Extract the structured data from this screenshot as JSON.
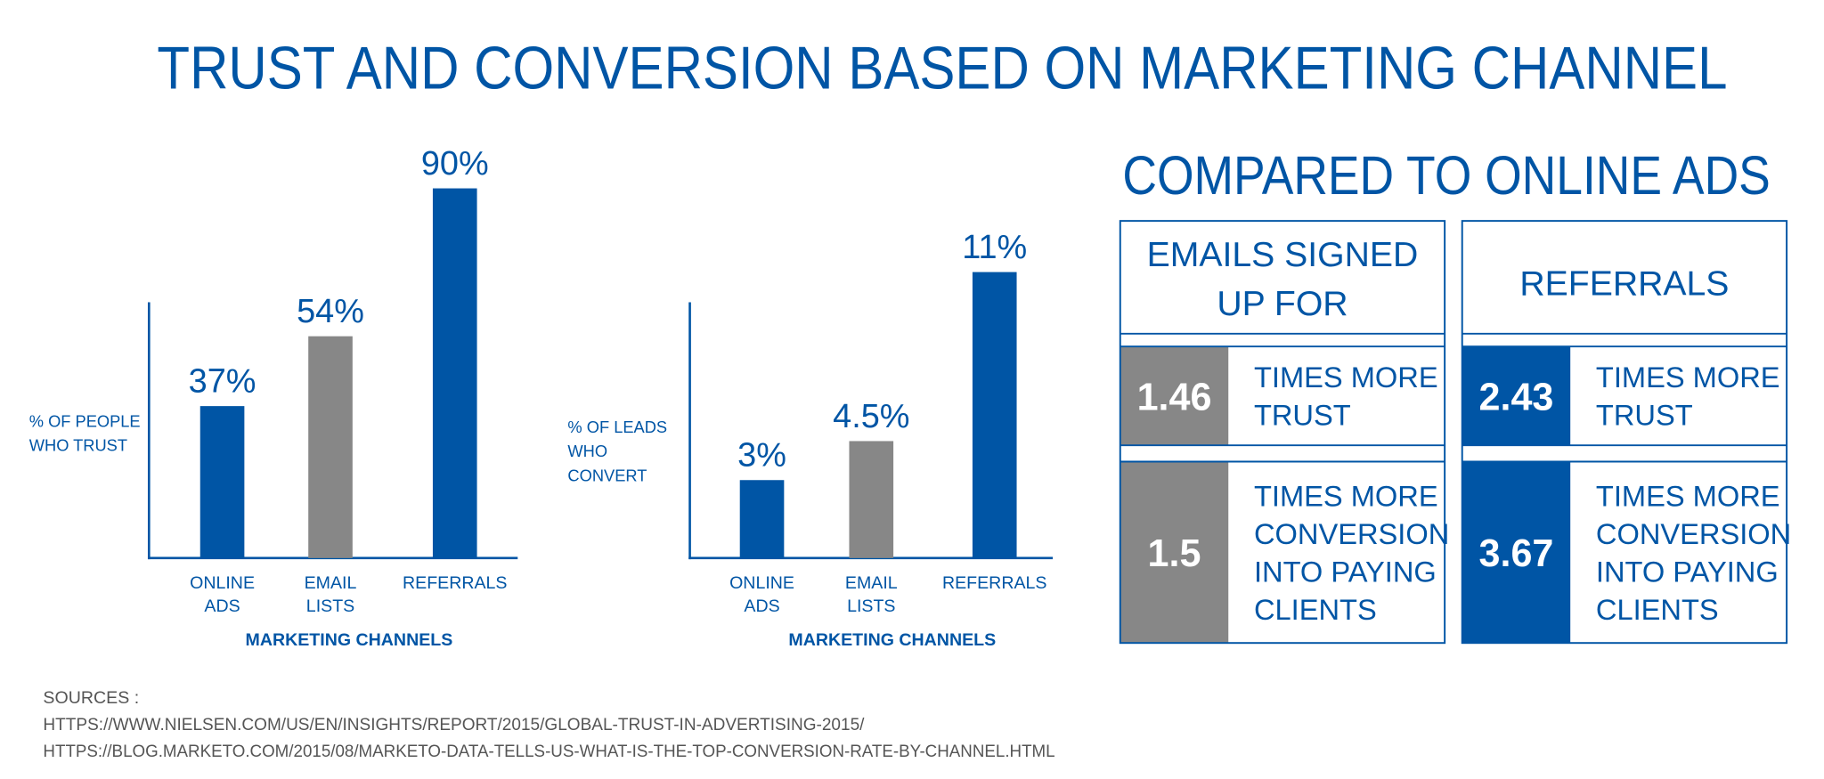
{
  "title": "TRUST AND CONVERSION BASED ON MARKETING CHANNEL",
  "colors": {
    "blue": "#0055a5",
    "gray": "#878787",
    "text_gray": "#555555"
  },
  "chart_data": [
    {
      "type": "bar",
      "ylabel_lines": [
        "% OF PEOPLE",
        "WHO TRUST"
      ],
      "xlabel": "MARKETING CHANNELS",
      "categories": [
        [
          "ONLINE",
          "ADS"
        ],
        [
          "EMAIL",
          "LISTS"
        ],
        [
          "REFERRALS"
        ]
      ],
      "values": [
        37,
        54,
        90
      ],
      "value_labels": [
        "37%",
        "54%",
        "90%"
      ],
      "bar_colors": [
        "#0055a5",
        "#878787",
        "#0055a5"
      ],
      "ylim": [
        0,
        90
      ]
    },
    {
      "type": "bar",
      "ylabel_lines": [
        "% OF LEADS",
        "WHO",
        "CONVERT"
      ],
      "xlabel": "MARKETING CHANNELS",
      "categories": [
        [
          "ONLINE",
          "ADS"
        ],
        [
          "EMAIL",
          "LISTS"
        ],
        [
          "REFERRALS"
        ]
      ],
      "values": [
        3,
        4.5,
        11
      ],
      "value_labels": [
        "3%",
        "4.5%",
        "11%"
      ],
      "bar_colors": [
        "#0055a5",
        "#878787",
        "#0055a5"
      ],
      "ylim": [
        0,
        11
      ]
    }
  ],
  "comparison": {
    "heading": "COMPARED TO ONLINE ADS",
    "panels": [
      {
        "header_lines": [
          "EMAILS SIGNED",
          "UP FOR"
        ],
        "color": "#878787",
        "rows": [
          {
            "value": "1.46",
            "lines": [
              "TIMES MORE",
              "TRUST"
            ]
          },
          {
            "value": "1.5",
            "lines": [
              "TIMES MORE",
              "CONVERSION",
              "INTO PAYING",
              "CLIENTS"
            ]
          }
        ]
      },
      {
        "header_lines": [
          "REFERRALS"
        ],
        "color": "#0055a5",
        "rows": [
          {
            "value": "2.43",
            "lines": [
              "TIMES MORE",
              "TRUST"
            ]
          },
          {
            "value": "3.67",
            "lines": [
              "TIMES MORE",
              "CONVERSION",
              "INTO PAYING",
              "CLIENTS"
            ]
          }
        ]
      }
    ]
  },
  "sources": {
    "label": "SOURCES :",
    "links": [
      "HTTPS://WWW.NIELSEN.COM/US/EN/INSIGHTS/REPORT/2015/GLOBAL-TRUST-IN-ADVERTISING-2015/",
      "HTTPS://BLOG.MARKETO.COM/2015/08/MARKETO-DATA-TELLS-US-WHAT-IS-THE-TOP-CONVERSION-RATE-BY-CHANNEL.HTML"
    ]
  }
}
